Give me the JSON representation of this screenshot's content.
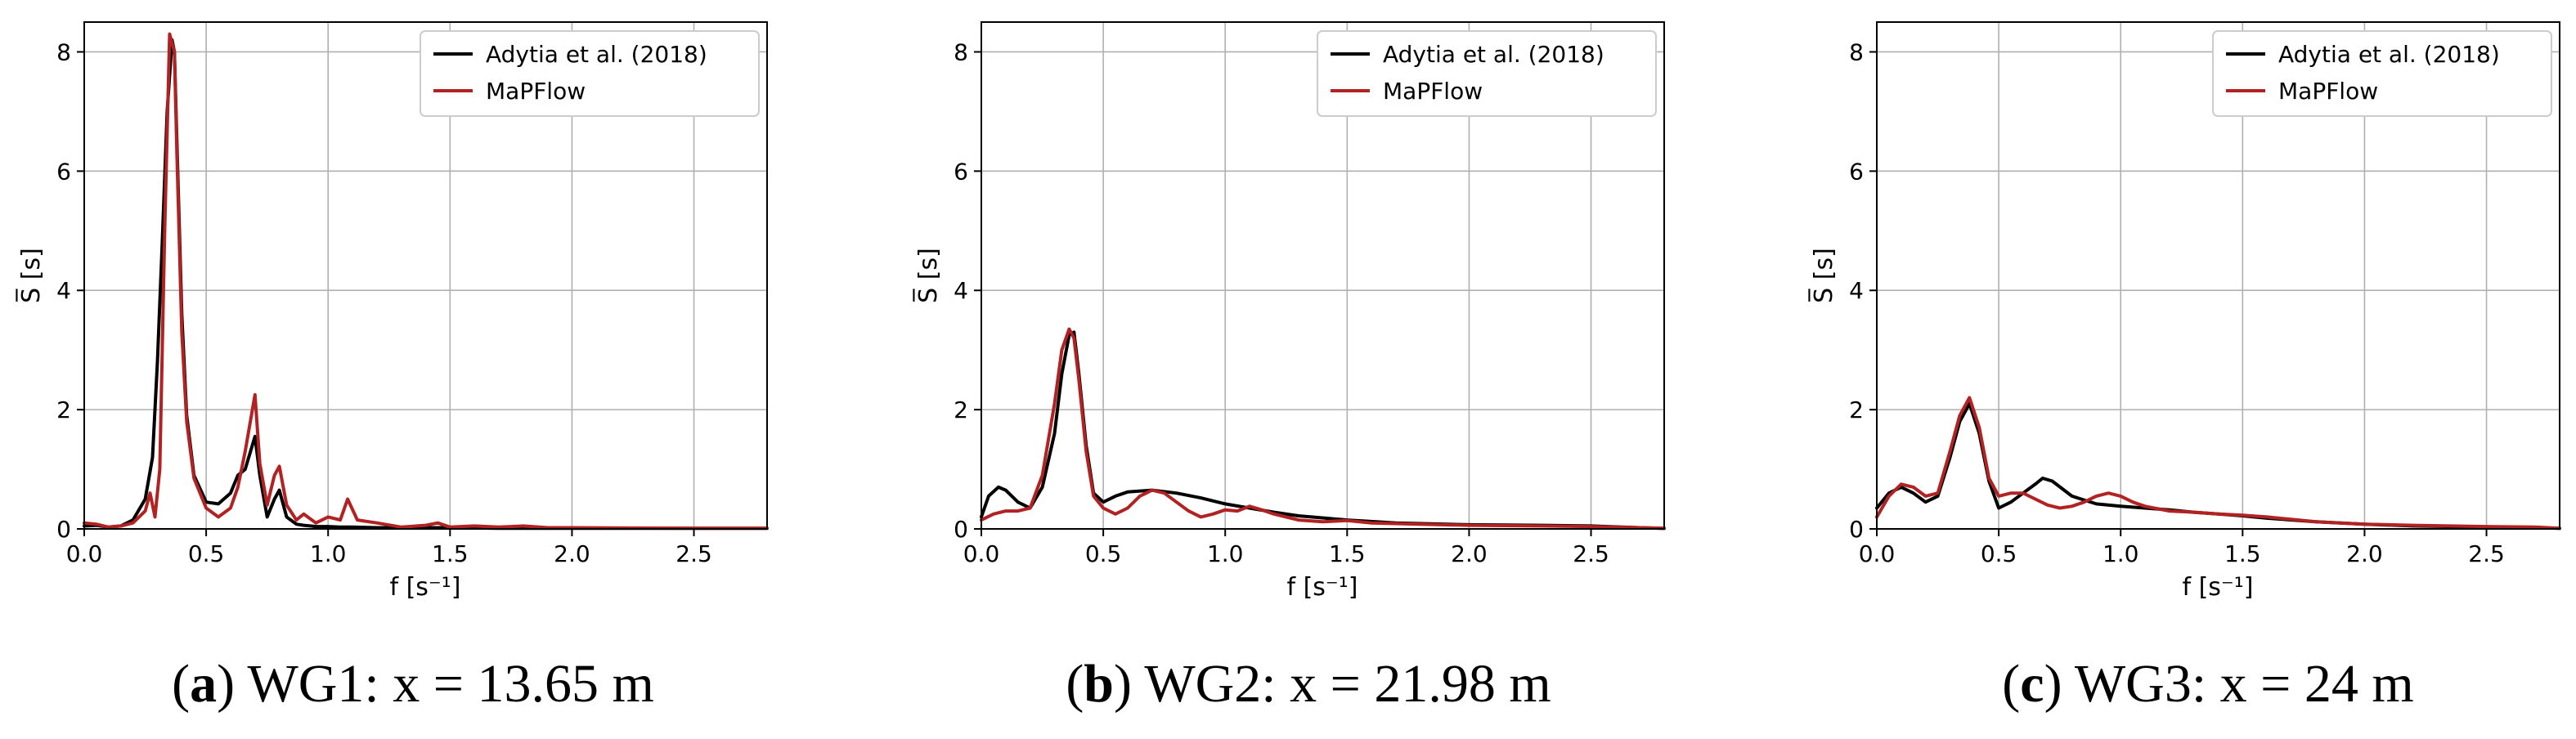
{
  "legend_entries": [
    {
      "label": "Adytia et al. (2018)",
      "color": "#000000"
    },
    {
      "label": "MaPFlow",
      "color": "#b22222"
    }
  ],
  "chart_data": [
    {
      "type": "line",
      "panel": "a",
      "caption": {
        "letter": "a",
        "text": "WG1: x = 13.65 m"
      },
      "xlabel": "f [s⁻¹]",
      "ylabel": "S̅ [s]",
      "xlim": [
        0,
        2.8
      ],
      "ylim": [
        0,
        8.5
      ],
      "xticks": [
        0.0,
        0.5,
        1.0,
        1.5,
        2.0,
        2.5
      ],
      "xtick_labels": [
        "0.0",
        "0.5",
        "1.0",
        "1.5",
        "2.0",
        "2.5"
      ],
      "yticks": [
        0,
        2,
        4,
        6,
        8
      ],
      "ytick_labels": [
        "0",
        "2",
        "4",
        "6",
        "8"
      ],
      "grid": true,
      "legend_position": "top-right",
      "series": [
        {
          "name": "Adytia et al. (2018)",
          "color": "#000000",
          "x": [
            0,
            0.05,
            0.1,
            0.15,
            0.2,
            0.25,
            0.28,
            0.3,
            0.32,
            0.34,
            0.36,
            0.37,
            0.38,
            0.4,
            0.42,
            0.45,
            0.5,
            0.55,
            0.6,
            0.63,
            0.66,
            0.7,
            0.72,
            0.75,
            0.78,
            0.8,
            0.83,
            0.87,
            0.9,
            0.95,
            1.0,
            1.05,
            1.1,
            1.2,
            1.3,
            1.5,
            1.7,
            2.0,
            2.5,
            2.8
          ],
          "y": [
            0.05,
            0.06,
            0.03,
            0.05,
            0.15,
            0.5,
            1.2,
            2.8,
            4.8,
            7.0,
            8.2,
            8.0,
            6.5,
            3.6,
            1.9,
            0.9,
            0.45,
            0.42,
            0.6,
            0.9,
            1.0,
            1.55,
            0.9,
            0.2,
            0.5,
            0.65,
            0.2,
            0.08,
            0.06,
            0.04,
            0.04,
            0.03,
            0.03,
            0.02,
            0.02,
            0.02,
            0.01,
            0.01,
            0.01,
            0.01
          ]
        },
        {
          "name": "MaPFlow",
          "color": "#b22222",
          "x": [
            0,
            0.05,
            0.1,
            0.15,
            0.2,
            0.25,
            0.27,
            0.29,
            0.31,
            0.33,
            0.35,
            0.37,
            0.38,
            0.4,
            0.42,
            0.45,
            0.5,
            0.55,
            0.6,
            0.63,
            0.66,
            0.7,
            0.72,
            0.75,
            0.78,
            0.8,
            0.83,
            0.87,
            0.9,
            0.95,
            1.0,
            1.05,
            1.08,
            1.12,
            1.2,
            1.3,
            1.4,
            1.45,
            1.5,
            1.6,
            1.7,
            1.8,
            1.9,
            2.0,
            2.5,
            2.8
          ],
          "y": [
            0.1,
            0.08,
            0.03,
            0.05,
            0.1,
            0.3,
            0.6,
            0.2,
            1.0,
            5.0,
            8.3,
            8.0,
            6.3,
            3.3,
            1.8,
            0.85,
            0.35,
            0.2,
            0.35,
            0.7,
            1.3,
            2.25,
            1.1,
            0.4,
            0.9,
            1.05,
            0.4,
            0.15,
            0.25,
            0.1,
            0.2,
            0.15,
            0.5,
            0.15,
            0.1,
            0.03,
            0.06,
            0.1,
            0.03,
            0.05,
            0.03,
            0.05,
            0.02,
            0.02,
            0.01,
            0.01
          ]
        }
      ]
    },
    {
      "type": "line",
      "panel": "b",
      "caption": {
        "letter": "b",
        "text": "WG2: x = 21.98 m"
      },
      "xlabel": "f [s⁻¹]",
      "ylabel": "S̅ [s]",
      "xlim": [
        0,
        2.8
      ],
      "ylim": [
        0,
        8.5
      ],
      "xticks": [
        0.0,
        0.5,
        1.0,
        1.5,
        2.0,
        2.5
      ],
      "xtick_labels": [
        "0.0",
        "0.5",
        "1.0",
        "1.5",
        "2.0",
        "2.5"
      ],
      "yticks": [
        0,
        2,
        4,
        6,
        8
      ],
      "ytick_labels": [
        "0",
        "2",
        "4",
        "6",
        "8"
      ],
      "grid": true,
      "legend_position": "top-right",
      "series": [
        {
          "name": "Adytia et al. (2018)",
          "color": "#000000",
          "x": [
            0,
            0.03,
            0.07,
            0.1,
            0.15,
            0.2,
            0.25,
            0.3,
            0.33,
            0.36,
            0.38,
            0.4,
            0.43,
            0.46,
            0.5,
            0.55,
            0.6,
            0.7,
            0.8,
            0.9,
            1.0,
            1.1,
            1.2,
            1.3,
            1.5,
            1.7,
            2.0,
            2.3,
            2.5,
            2.7,
            2.8
          ],
          "y": [
            0.2,
            0.55,
            0.7,
            0.65,
            0.45,
            0.35,
            0.7,
            1.6,
            2.6,
            3.25,
            3.3,
            2.6,
            1.4,
            0.6,
            0.45,
            0.55,
            0.62,
            0.65,
            0.6,
            0.52,
            0.42,
            0.35,
            0.28,
            0.22,
            0.15,
            0.1,
            0.07,
            0.06,
            0.05,
            0.02,
            0.01
          ]
        },
        {
          "name": "MaPFlow",
          "color": "#b22222",
          "x": [
            0,
            0.05,
            0.1,
            0.15,
            0.2,
            0.25,
            0.3,
            0.33,
            0.36,
            0.38,
            0.4,
            0.43,
            0.46,
            0.5,
            0.55,
            0.6,
            0.65,
            0.7,
            0.75,
            0.8,
            0.85,
            0.9,
            0.95,
            1.0,
            1.05,
            1.1,
            1.15,
            1.2,
            1.3,
            1.4,
            1.5,
            1.6,
            1.8,
            2.0,
            2.3,
            2.5,
            2.7,
            2.8
          ],
          "y": [
            0.15,
            0.25,
            0.3,
            0.3,
            0.35,
            0.9,
            2.1,
            3.0,
            3.35,
            3.2,
            2.5,
            1.3,
            0.55,
            0.35,
            0.25,
            0.35,
            0.55,
            0.65,
            0.6,
            0.45,
            0.3,
            0.2,
            0.25,
            0.32,
            0.3,
            0.38,
            0.32,
            0.25,
            0.15,
            0.12,
            0.14,
            0.1,
            0.08,
            0.06,
            0.05,
            0.04,
            0.02,
            0.01
          ]
        }
      ]
    },
    {
      "type": "line",
      "panel": "c",
      "caption": {
        "letter": "c",
        "text": "WG3: x = 24 m"
      },
      "xlabel": "f [s⁻¹]",
      "ylabel": "S̅ [s]",
      "xlim": [
        0,
        2.8
      ],
      "ylim": [
        0,
        8.5
      ],
      "xticks": [
        0.0,
        0.5,
        1.0,
        1.5,
        2.0,
        2.5
      ],
      "xtick_labels": [
        "0.0",
        "0.5",
        "1.0",
        "1.5",
        "2.0",
        "2.5"
      ],
      "yticks": [
        0,
        2,
        4,
        6,
        8
      ],
      "ytick_labels": [
        "0",
        "2",
        "4",
        "6",
        "8"
      ],
      "grid": true,
      "legend_position": "top-right",
      "series": [
        {
          "name": "Adytia et al. (2018)",
          "color": "#000000",
          "x": [
            0,
            0.05,
            0.1,
            0.15,
            0.2,
            0.25,
            0.3,
            0.34,
            0.38,
            0.42,
            0.46,
            0.5,
            0.55,
            0.6,
            0.65,
            0.68,
            0.72,
            0.8,
            0.9,
            1.0,
            1.1,
            1.2,
            1.3,
            1.4,
            1.5,
            1.6,
            1.8,
            2.0,
            2.2,
            2.5,
            2.7,
            2.8
          ],
          "y": [
            0.35,
            0.6,
            0.7,
            0.6,
            0.45,
            0.55,
            1.2,
            1.8,
            2.1,
            1.6,
            0.8,
            0.35,
            0.45,
            0.6,
            0.75,
            0.85,
            0.8,
            0.55,
            0.42,
            0.38,
            0.35,
            0.32,
            0.28,
            0.25,
            0.22,
            0.18,
            0.12,
            0.08,
            0.05,
            0.03,
            0.02,
            0.01
          ]
        },
        {
          "name": "MaPFlow",
          "color": "#b22222",
          "x": [
            0,
            0.05,
            0.1,
            0.15,
            0.2,
            0.25,
            0.3,
            0.34,
            0.38,
            0.42,
            0.46,
            0.5,
            0.55,
            0.6,
            0.65,
            0.7,
            0.75,
            0.8,
            0.85,
            0.9,
            0.95,
            1.0,
            1.05,
            1.1,
            1.2,
            1.3,
            1.4,
            1.5,
            1.6,
            1.8,
            2.0,
            2.2,
            2.5,
            2.7,
            2.8
          ],
          "y": [
            0.2,
            0.55,
            0.75,
            0.7,
            0.55,
            0.6,
            1.3,
            1.9,
            2.2,
            1.7,
            0.85,
            0.55,
            0.6,
            0.6,
            0.5,
            0.4,
            0.35,
            0.38,
            0.45,
            0.55,
            0.6,
            0.55,
            0.45,
            0.38,
            0.3,
            0.28,
            0.25,
            0.23,
            0.2,
            0.12,
            0.08,
            0.06,
            0.04,
            0.03,
            0.01
          ]
        }
      ]
    }
  ]
}
